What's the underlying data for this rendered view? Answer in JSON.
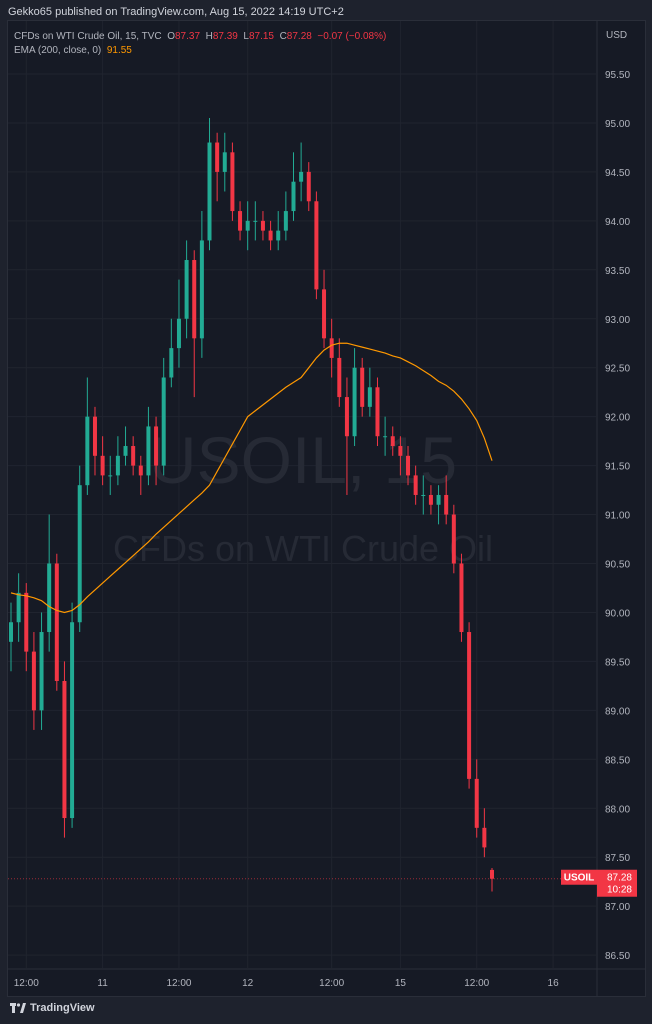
{
  "header": {
    "published": "Gekko65 published on TradingView.com, Aug 15, 2022 14:19 UTC+2"
  },
  "legend": {
    "symbol": "CFDs on WTI Crude Oil, 15, TVC",
    "o_label": "O",
    "o": "87.37",
    "h_label": "H",
    "h": "87.39",
    "l_label": "L",
    "l": "87.15",
    "c_label": "C",
    "c": "87.28",
    "change": "−0.07 (−0.08%)",
    "ema_label": "EMA (200, close, 0)",
    "ema_value": "91.55"
  },
  "axis": {
    "currency": "USD"
  },
  "watermark": {
    "line1": "USOIL, 15",
    "line2": "CFDs on WTI Crude Oil"
  },
  "badge": {
    "symbol": "USOIL",
    "price": "87.28",
    "countdown": "10:28"
  },
  "footer": {
    "logo": "TradingView"
  },
  "colors": {
    "up": "#22ab94",
    "down": "#f23645",
    "ema": "#ff9800",
    "background": "#161a25"
  },
  "chart_data": {
    "type": "candlestick",
    "ylim": [
      86.25,
      95.75
    ],
    "yticks": [
      95.5,
      95.0,
      94.5,
      94.0,
      93.5,
      93.0,
      92.5,
      92.0,
      91.5,
      91.0,
      90.5,
      90.0,
      89.5,
      89.0,
      88.5,
      88.0,
      87.5,
      87.0,
      86.5
    ],
    "xticks": [
      {
        "label": "12:00",
        "index": 2
      },
      {
        "label": "11",
        "index": 12
      },
      {
        "label": "12:00",
        "index": 22
      },
      {
        "label": "12",
        "index": 31
      },
      {
        "label": "12:00",
        "index": 42
      },
      {
        "label": "15",
        "index": 51
      },
      {
        "label": "12:00",
        "index": 61
      },
      {
        "label": "16",
        "index": 71
      }
    ],
    "open": [
      89.7,
      89.9,
      90.2,
      89.6,
      89.0,
      89.8,
      90.5,
      89.3,
      87.9,
      89.9,
      91.3,
      92.0,
      91.6,
      91.4,
      91.4,
      91.6,
      91.7,
      91.5,
      91.4,
      91.9,
      91.5,
      92.4,
      92.7,
      93.0,
      93.6,
      92.8,
      93.8,
      94.8,
      94.5,
      94.7,
      94.1,
      93.9,
      94.0,
      94.0,
      93.9,
      93.8,
      93.9,
      94.1,
      94.4,
      94.5,
      94.2,
      93.3,
      92.8,
      92.6,
      92.2,
      91.8,
      92.5,
      92.1,
      92.3,
      91.8,
      91.8,
      91.7,
      91.6,
      91.4,
      91.2,
      91.2,
      91.1,
      91.2,
      91.0,
      90.5,
      89.8,
      88.3,
      87.8,
      87.37
    ],
    "high": [
      90.1,
      90.4,
      90.3,
      89.8,
      90.0,
      91.0,
      90.6,
      89.5,
      90.1,
      91.5,
      92.4,
      92.1,
      91.8,
      91.6,
      91.8,
      91.9,
      91.8,
      91.6,
      92.1,
      92.0,
      92.6,
      93.0,
      93.4,
      93.8,
      93.7,
      94.1,
      95.05,
      94.9,
      94.9,
      94.8,
      94.2,
      94.2,
      94.2,
      94.1,
      94.0,
      94.1,
      94.3,
      94.7,
      94.8,
      94.6,
      94.3,
      93.5,
      93.0,
      92.8,
      92.4,
      92.7,
      92.6,
      92.5,
      92.4,
      92.0,
      91.9,
      91.8,
      91.7,
      91.5,
      91.4,
      91.3,
      91.3,
      91.4,
      91.1,
      90.6,
      89.9,
      88.5,
      88.0,
      87.39
    ],
    "low": [
      89.4,
      89.7,
      89.4,
      88.8,
      88.8,
      89.6,
      89.2,
      87.7,
      87.8,
      89.8,
      91.2,
      91.4,
      91.3,
      91.2,
      91.3,
      91.5,
      91.4,
      91.2,
      91.3,
      91.3,
      91.4,
      92.3,
      92.5,
      92.8,
      92.2,
      92.6,
      93.7,
      94.2,
      94.3,
      94.0,
      93.8,
      93.7,
      93.8,
      93.8,
      93.7,
      93.7,
      93.8,
      94.0,
      94.2,
      94.1,
      93.2,
      92.7,
      92.4,
      92.1,
      91.2,
      91.7,
      92.0,
      92.0,
      91.7,
      91.6,
      91.6,
      91.4,
      91.3,
      91.1,
      91.0,
      91.0,
      90.9,
      90.9,
      90.4,
      89.7,
      88.2,
      87.7,
      87.5,
      87.15
    ],
    "close": [
      89.9,
      90.2,
      89.6,
      89.0,
      89.8,
      90.5,
      89.3,
      87.9,
      89.9,
      91.3,
      92.0,
      91.6,
      91.4,
      91.4,
      91.6,
      91.7,
      91.5,
      91.4,
      91.9,
      91.5,
      92.4,
      92.7,
      93.0,
      93.6,
      92.8,
      93.8,
      94.8,
      94.5,
      94.7,
      94.1,
      93.9,
      94.0,
      94.0,
      93.9,
      93.8,
      93.9,
      94.1,
      94.4,
      94.5,
      94.2,
      93.3,
      92.8,
      92.6,
      92.2,
      91.8,
      92.5,
      92.1,
      92.3,
      91.8,
      91.8,
      91.7,
      91.6,
      91.4,
      91.2,
      91.2,
      91.1,
      91.2,
      91.0,
      90.5,
      89.8,
      88.3,
      87.8,
      87.6,
      87.28
    ],
    "ema": [
      90.2,
      90.18,
      90.17,
      90.15,
      90.12,
      90.06,
      90.02,
      90.0,
      90.02,
      90.08,
      90.16,
      90.23,
      90.3,
      90.37,
      90.44,
      90.51,
      90.58,
      90.65,
      90.72,
      90.8,
      90.87,
      90.94,
      91.01,
      91.08,
      91.15,
      91.22,
      91.3,
      91.44,
      91.58,
      91.72,
      91.86,
      92.0,
      92.06,
      92.12,
      92.18,
      92.24,
      92.3,
      92.35,
      92.4,
      92.5,
      92.6,
      92.68,
      92.73,
      92.75,
      92.75,
      92.73,
      92.71,
      92.69,
      92.67,
      92.65,
      92.62,
      92.6,
      92.56,
      92.52,
      92.47,
      92.42,
      92.36,
      92.32,
      92.26,
      92.18,
      92.08,
      91.96,
      91.78,
      91.55
    ]
  }
}
